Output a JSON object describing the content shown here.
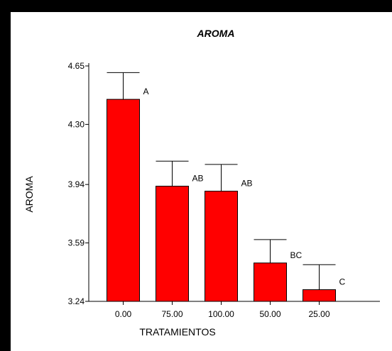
{
  "chart_data": {
    "type": "bar",
    "title": "AROMA",
    "xlabel": "TRATAMIENTOS",
    "ylabel": "AROMA",
    "categories": [
      "0.00",
      "75.00",
      "100.00",
      "50.00",
      "25.00"
    ],
    "values": [
      4.45,
      3.93,
      3.9,
      3.47,
      3.31
    ],
    "error_upper": [
      4.61,
      4.08,
      4.06,
      3.61,
      3.46
    ],
    "group_labels": [
      "A",
      "AB",
      "AB",
      "BC",
      "C"
    ],
    "yticks": [
      "3.24",
      "3.59",
      "3.94",
      "4.30",
      "4.65"
    ],
    "ylim": [
      3.24,
      4.65
    ],
    "bar_color": "#ff0000",
    "grid": false,
    "legend": "none"
  }
}
